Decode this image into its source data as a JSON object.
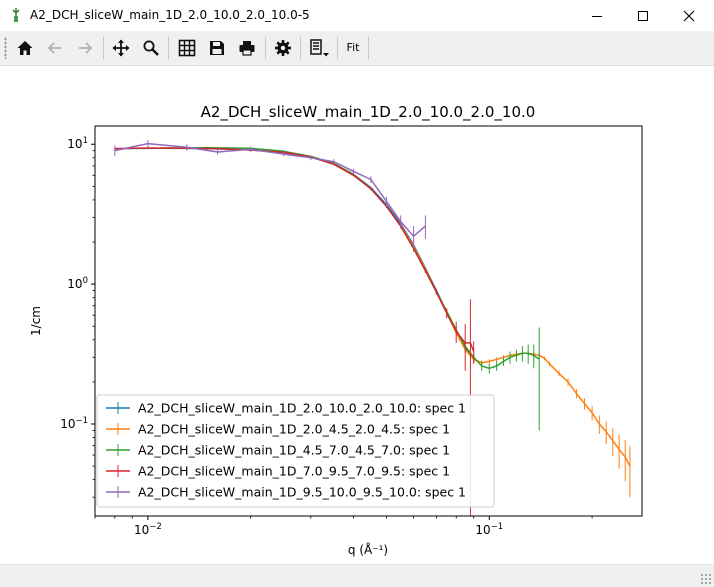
{
  "window": {
    "title": "A2_DCH_sliceW_main_1D_2.0_10.0_2.0_10.0-5",
    "icon": "mantid-app-icon",
    "controls": [
      "minimize-icon",
      "maximize-icon",
      "close-icon"
    ]
  },
  "toolbar": {
    "buttons": [
      "home-icon",
      "back-arrow-icon",
      "forward-arrow-icon",
      "pan-move-icon",
      "zoom-magnifier-icon",
      "grid-icon",
      "save-disk-icon",
      "print-icon",
      "gear-icon",
      "line-options-dropdown-icon"
    ],
    "fit_label": "Fit"
  },
  "chart_data": {
    "type": "line",
    "title": "A2_DCH_sliceW_main_1D_2.0_10.0_2.0_10.0",
    "xlabel": "q (Å⁻¹)",
    "ylabel": "1/cm",
    "xscale": "log",
    "yscale": "log",
    "xlim": [
      0.007,
      0.28
    ],
    "ylim": [
      0.022,
      13.5
    ],
    "xticks": [
      {
        "value": 0.01,
        "base": "10",
        "exp": "−2"
      },
      {
        "value": 0.1,
        "base": "10",
        "exp": "−1"
      }
    ],
    "yticks": [
      {
        "value": 0.1,
        "base": "10",
        "exp": "−1"
      },
      {
        "value": 1,
        "base": "10",
        "exp": "0"
      },
      {
        "value": 10,
        "base": "10",
        "exp": "1"
      }
    ],
    "grid": false,
    "legend_position": "lower-left",
    "series": [
      {
        "name": "A2_DCH_sliceW_main_1D_2.0_10.0_2.0_10.0: spec 1",
        "color": "#1f77b4",
        "x": [
          0.008,
          0.011,
          0.015,
          0.02,
          0.025,
          0.03,
          0.035,
          0.04,
          0.045,
          0.05,
          0.055,
          0.06,
          0.065,
          0.07,
          0.075,
          0.08,
          0.085,
          0.09
        ],
        "y": [
          9.3,
          9.35,
          9.3,
          9.1,
          8.7,
          8.1,
          7.2,
          6.1,
          4.9,
          3.7,
          2.7,
          1.9,
          1.3,
          0.9,
          0.63,
          0.45,
          0.35,
          0.29
        ],
        "err": []
      },
      {
        "name": "A2_DCH_sliceW_main_1D_2.0_4.5_2.0_4.5: spec 1",
        "color": "#ff7f0e",
        "x": [
          0.055,
          0.06,
          0.065,
          0.07,
          0.075,
          0.08,
          0.085,
          0.09,
          0.095,
          0.1,
          0.105,
          0.11,
          0.115,
          0.12,
          0.125,
          0.13,
          0.135,
          0.14,
          0.145,
          0.15,
          0.16,
          0.17,
          0.18,
          0.19,
          0.2,
          0.21,
          0.22,
          0.23,
          0.24,
          0.25,
          0.258
        ],
        "y": [
          2.65,
          1.85,
          1.28,
          0.88,
          0.62,
          0.45,
          0.34,
          0.29,
          0.275,
          0.28,
          0.29,
          0.3,
          0.31,
          0.315,
          0.32,
          0.32,
          0.315,
          0.31,
          0.295,
          0.27,
          0.23,
          0.2,
          0.165,
          0.14,
          0.12,
          0.1,
          0.088,
          0.076,
          0.066,
          0.058,
          0.05
        ],
        "err": [
          0.02,
          0.02,
          0.02,
          0.02,
          0.02,
          0.02,
          0.02,
          0.02,
          0.01,
          0.01,
          0.01,
          0.01,
          0.01,
          0.01,
          0.01,
          0.01,
          0.01,
          0.01,
          0.01,
          0.01,
          0.01,
          0.012,
          0.012,
          0.013,
          0.014,
          0.015,
          0.016,
          0.017,
          0.018,
          0.019,
          0.02
        ]
      },
      {
        "name": "A2_DCH_sliceW_main_1D_4.5_7.0_4.5_7.0: spec 1",
        "color": "#2ca02c",
        "x": [
          0.011,
          0.015,
          0.02,
          0.025,
          0.03,
          0.035,
          0.04,
          0.045,
          0.05,
          0.055,
          0.06,
          0.065,
          0.07,
          0.075,
          0.08,
          0.085,
          0.09,
          0.095,
          0.1,
          0.105,
          0.11,
          0.115,
          0.12,
          0.125,
          0.13,
          0.135,
          0.14
        ],
        "y": [
          9.4,
          9.45,
          9.35,
          8.9,
          8.2,
          7.3,
          6.1,
          4.8,
          3.6,
          2.6,
          1.8,
          1.25,
          0.88,
          0.64,
          0.47,
          0.36,
          0.3,
          0.26,
          0.25,
          0.26,
          0.28,
          0.3,
          0.31,
          0.32,
          0.32,
          0.31,
          0.29
        ],
        "err": [
          0.1,
          0.1,
          0.1,
          0.1,
          0.1,
          0.1,
          0.1,
          0.1,
          0.1,
          0.1,
          0.1,
          0.05,
          0.04,
          0.03,
          0.03,
          0.02,
          0.02,
          0.02,
          0.02,
          0.02,
          0.02,
          0.03,
          0.03,
          0.04,
          0.05,
          0.06,
          0.2
        ]
      },
      {
        "name": "A2_DCH_sliceW_main_1D_7.0_9.5_7.0_9.5: spec 1",
        "color": "#d62728",
        "x": [
          0.008,
          0.01,
          0.013,
          0.016,
          0.02,
          0.025,
          0.03,
          0.035,
          0.04,
          0.045,
          0.05,
          0.055,
          0.06,
          0.065,
          0.07,
          0.075,
          0.08,
          0.085,
          0.088,
          0.09
        ],
        "y": [
          9.3,
          9.4,
          9.35,
          9.3,
          9.1,
          8.75,
          8.1,
          7.2,
          6.0,
          4.8,
          3.6,
          2.6,
          1.8,
          1.25,
          0.88,
          0.62,
          0.46,
          0.38,
          0.38,
          0.33
        ],
        "err": [
          0.1,
          0.1,
          0.1,
          0.1,
          0.1,
          0.1,
          0.1,
          0.1,
          0.1,
          0.1,
          0.1,
          0.1,
          0.05,
          0.04,
          0.04,
          0.05,
          0.08,
          0.14,
          0.4,
          0.06
        ]
      },
      {
        "name": "A2_DCH_sliceW_main_1D_9.5_10.0_9.5_10.0: spec 1",
        "color": "#9467bd",
        "x": [
          0.008,
          0.01,
          0.013,
          0.016,
          0.02,
          0.025,
          0.03,
          0.035,
          0.04,
          0.045,
          0.05,
          0.055,
          0.06,
          0.065
        ],
        "y": [
          9.0,
          10.1,
          9.5,
          8.8,
          9.2,
          8.5,
          8.0,
          7.5,
          6.4,
          5.6,
          3.9,
          2.8,
          2.2,
          2.6
        ],
        "err": [
          0.8,
          0.6,
          0.5,
          0.4,
          0.4,
          0.3,
          0.3,
          0.3,
          0.3,
          0.3,
          0.3,
          0.3,
          0.4,
          0.5
        ]
      }
    ]
  }
}
